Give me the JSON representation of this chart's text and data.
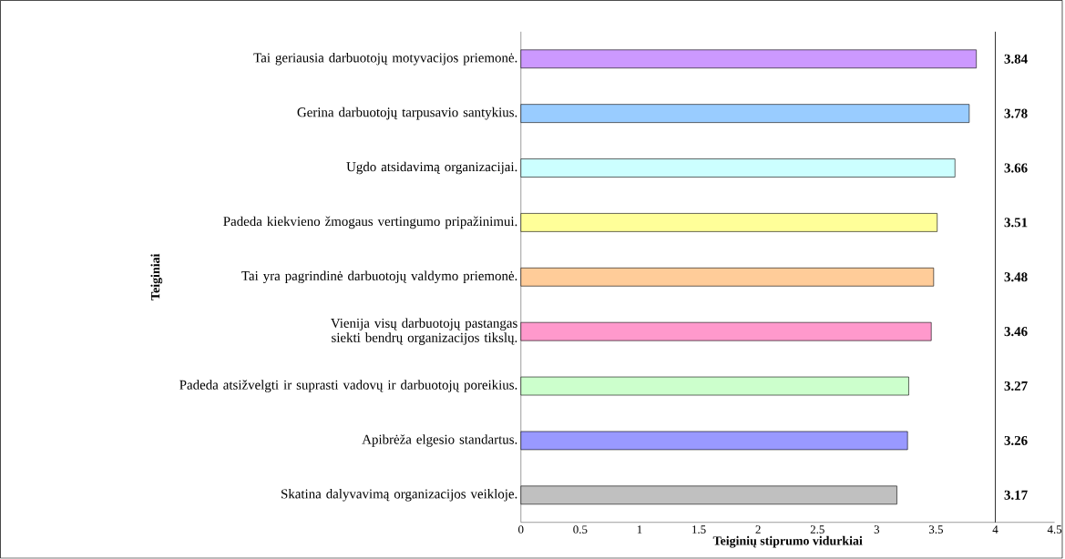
{
  "chart_data": {
    "type": "bar",
    "orientation": "horizontal",
    "xlabel": "Teiginių stiprumo vidurkiai",
    "ylabel": "Teiginiai",
    "categories": [
      "Tai geriausia darbuotojų motyvacijos priemonė.",
      "Gerina darbuotojų tarpusavio santykius.",
      "Ugdo atsidavimą organizacijai.",
      "Padeda kiekvieno žmogaus vertingumo pripažinimui.",
      "Tai yra pagrindinė darbuotojų valdymo priemonė.",
      "Vienija visų darbuotojų pastangas siekti bendrų organizacijos tikslų.",
      "Padeda atsižvelgti ir suprasti vadovų ir darbuotojų poreikius.",
      "Apibrėža elgesio standartus.",
      "Skatina dalyvavimą organizacijos veikloje."
    ],
    "values": [
      3.84,
      3.78,
      3.66,
      3.51,
      3.48,
      3.46,
      3.27,
      3.26,
      3.17
    ],
    "colors": [
      "#cc99ff",
      "#99ccff",
      "#ccffff",
      "#ffff99",
      "#ffcc99",
      "#ff99cc",
      "#ccffcc",
      "#9999ff",
      "#c0c0c0"
    ],
    "xlim": [
      0,
      4.5
    ],
    "xticks": [
      0,
      0.5,
      1,
      1.5,
      2,
      2.5,
      3,
      3.5,
      4,
      4.5
    ],
    "data_labels": true,
    "ref_lines": [
      {
        "axis": "x",
        "value": 4,
        "color": "#000000"
      }
    ]
  }
}
